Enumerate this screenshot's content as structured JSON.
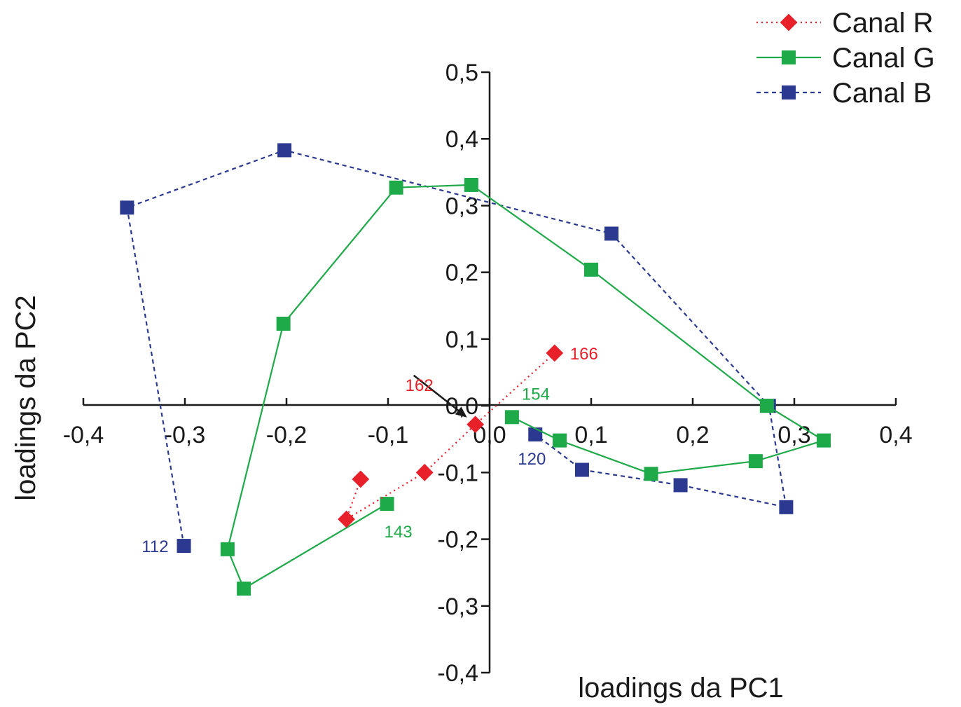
{
  "chart_data": {
    "type": "scatter",
    "title": "",
    "xlabel": "loadings da PC1",
    "ylabel": "loadings da PC2",
    "xlim": [
      -0.4,
      0.4
    ],
    "ylim": [
      -0.4,
      0.5
    ],
    "xticks": [
      -0.4,
      -0.3,
      -0.2,
      -0.1,
      0.0,
      0.1,
      0.2,
      0.3,
      0.4
    ],
    "yticks": [
      -0.4,
      -0.3,
      -0.2,
      -0.1,
      0.0,
      0.1,
      0.2,
      0.3,
      0.4,
      0.5
    ],
    "xtick_labels": [
      "-0,4",
      "-0,3",
      "-0,2",
      "-0,1",
      "0,0",
      "0,1",
      "0,2",
      "0,3",
      "0,4"
    ],
    "ytick_labels": [
      "-0,4",
      "-0,3",
      "-0,2",
      "-0,1",
      "0,0",
      "0,1",
      "0,2",
      "0,3",
      "0,4",
      "0,5"
    ],
    "grid": false,
    "legend_position": "top-right",
    "series": [
      {
        "name": "Canal R",
        "color": "#e8202a",
        "marker": "diamond",
        "line": "dotted",
        "points": [
          [
            0.064,
            0.079
          ],
          [
            -0.014,
            -0.028
          ],
          [
            -0.064,
            -0.1
          ],
          [
            -0.141,
            -0.17
          ],
          [
            -0.127,
            -0.11
          ]
        ]
      },
      {
        "name": "Canal G",
        "color": "#1faa4a",
        "marker": "square",
        "line": "solid",
        "points": [
          [
            -0.101,
            -0.147
          ],
          [
            -0.242,
            -0.274
          ],
          [
            -0.258,
            -0.215
          ],
          [
            -0.203,
            0.123
          ],
          [
            -0.092,
            0.327
          ],
          [
            -0.018,
            0.331
          ],
          [
            0.1,
            0.204
          ],
          [
            0.273,
            0.0
          ],
          [
            0.329,
            -0.052
          ],
          [
            0.262,
            -0.083
          ],
          [
            0.159,
            -0.102
          ],
          [
            0.069,
            -0.052
          ],
          [
            0.022,
            -0.017
          ]
        ]
      },
      {
        "name": "Canal B",
        "color": "#2b3990",
        "marker": "square",
        "line": "dashed",
        "points": [
          [
            -0.301,
            -0.21
          ],
          [
            -0.357,
            0.297
          ],
          [
            -0.202,
            0.383
          ],
          [
            0.12,
            0.258
          ],
          [
            0.275,
            0.0
          ],
          [
            0.292,
            -0.152
          ],
          [
            0.188,
            -0.119
          ],
          [
            0.091,
            -0.096
          ],
          [
            0.045,
            -0.043
          ]
        ]
      }
    ],
    "annotations": [
      {
        "text": "166",
        "color": "#e8202a",
        "x": 0.064,
        "y": 0.079
      },
      {
        "text": "162",
        "color": "#e8202a",
        "x": -0.014,
        "y": -0.028
      },
      {
        "text": "154",
        "color": "#1faa4a",
        "x": 0.022,
        "y": -0.017
      },
      {
        "text": "143",
        "color": "#1faa4a",
        "x": -0.101,
        "y": -0.147
      },
      {
        "text": "120",
        "color": "#2b3990",
        "x": 0.045,
        "y": -0.043
      },
      {
        "text": "112",
        "color": "#2b3990",
        "x": -0.301,
        "y": -0.21
      }
    ]
  }
}
